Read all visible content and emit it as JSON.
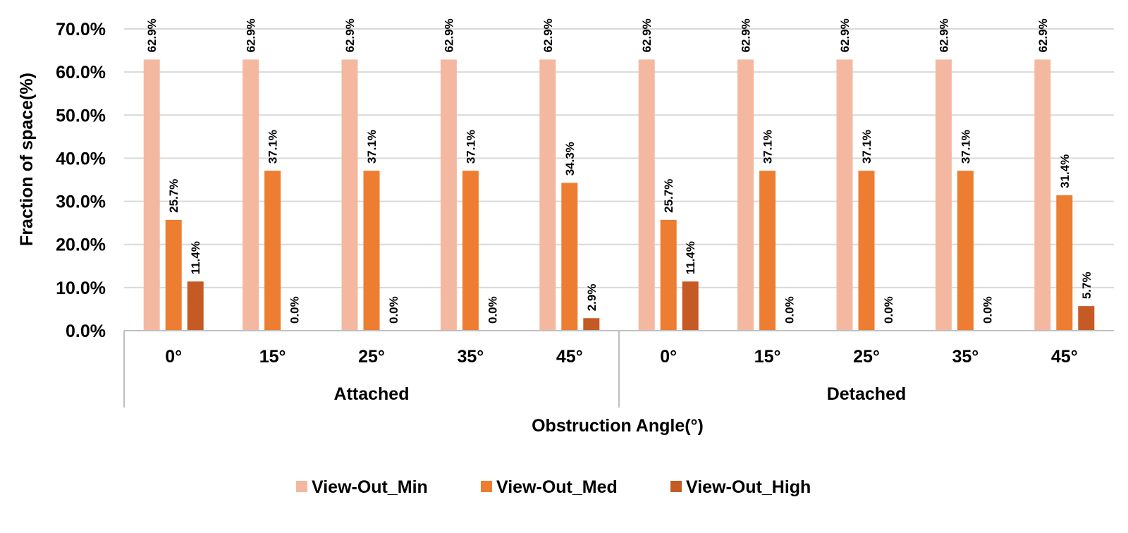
{
  "chart_data": {
    "type": "bar",
    "ylabel": "Fraction of space(%)",
    "xlabel": "Obstruction Angle(°)",
    "ylim": [
      0,
      70
    ],
    "yticks": [
      "0.0%",
      "10.0%",
      "20.0%",
      "30.0%",
      "40.0%",
      "50.0%",
      "60.0%",
      "70.0%"
    ],
    "grid": true,
    "legend_position": "bottom",
    "groups": [
      {
        "name": "Attached",
        "categories": [
          "0°",
          "15°",
          "25°",
          "35°",
          "45°"
        ]
      },
      {
        "name": "Detached",
        "categories": [
          "0°",
          "15°",
          "25°",
          "35°",
          "45°"
        ]
      }
    ],
    "series": [
      {
        "name": "View-Out_Min",
        "color": "#f4b8a0",
        "values": [
          62.9,
          62.9,
          62.9,
          62.9,
          62.9,
          62.9,
          62.9,
          62.9,
          62.9,
          62.9
        ],
        "labels": [
          "62.9%",
          "62.9%",
          "62.9%",
          "62.9%",
          "62.9%",
          "62.9%",
          "62.9%",
          "62.9%",
          "62.9%",
          "62.9%"
        ]
      },
      {
        "name": "View-Out_Med",
        "color": "#ed7d31",
        "values": [
          25.7,
          37.1,
          37.1,
          37.1,
          34.3,
          25.7,
          37.1,
          37.1,
          37.1,
          31.4
        ],
        "labels": [
          "25.7%",
          "37.1%",
          "37.1%",
          "37.1%",
          "34.3%",
          "25.7%",
          "37.1%",
          "37.1%",
          "37.1%",
          "31.4%"
        ]
      },
      {
        "name": "View-Out_High",
        "color": "#c55a24",
        "values": [
          11.4,
          0.0,
          0.0,
          0.0,
          2.9,
          11.4,
          0.0,
          0.0,
          0.0,
          5.7
        ],
        "labels": [
          "11.4%",
          "0.0%",
          "0.0%",
          "0.0%",
          "2.9%",
          "11.4%",
          "0.0%",
          "0.0%",
          "0.0%",
          "5.7%"
        ]
      }
    ]
  }
}
